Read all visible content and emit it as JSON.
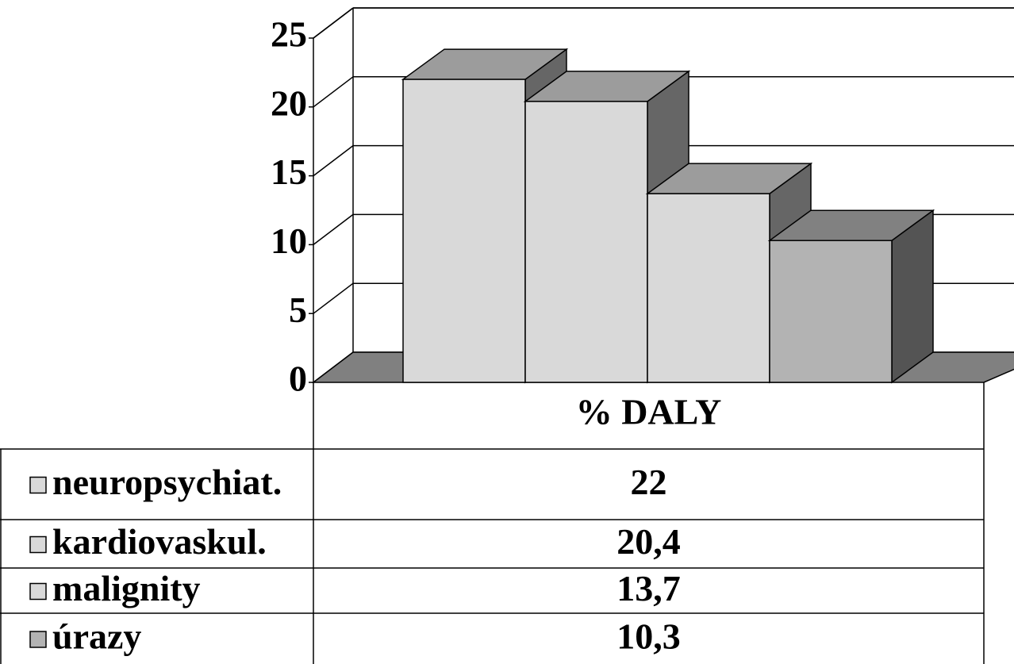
{
  "chart_data": {
    "type": "bar3d",
    "categories": [
      "% DALY"
    ],
    "series": [
      {
        "name": "neuropsychiat.",
        "color": "#d9d9d9",
        "values": [
          22
        ]
      },
      {
        "name": "kardiovaskul.",
        "color": "#d9d9d9",
        "values": [
          20.4
        ],
        "value_labels": [
          "20,4"
        ]
      },
      {
        "name": "malignity",
        "color": "#d9d9d9",
        "values": [
          13.7
        ],
        "value_labels": [
          "13,7"
        ]
      },
      {
        "name": "úrazy",
        "color": "#b3b3b3",
        "values": [
          10.3
        ],
        "value_labels": [
          "10,3"
        ]
      }
    ],
    "ylim": [
      0,
      25
    ],
    "yticks": [
      0,
      5,
      10,
      15,
      20,
      25
    ],
    "grid": true
  }
}
